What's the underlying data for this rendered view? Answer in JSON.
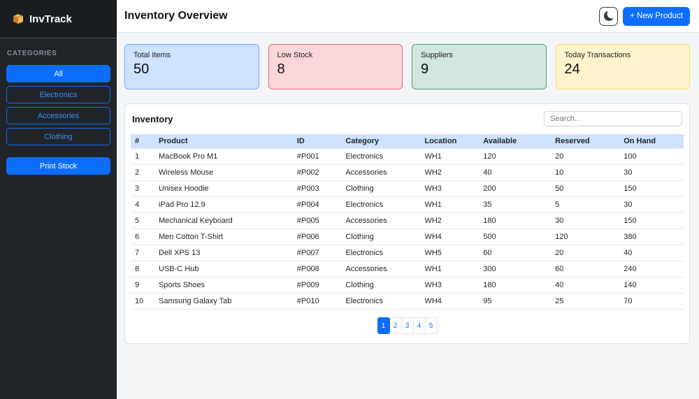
{
  "colors": {
    "accent": "#0d6efd",
    "sidebar_bg": "#212529",
    "sidebar_top_bg": "#1b1e21",
    "content_bg": "#f3f5f7",
    "table_header_bg": "#cfe2ff"
  },
  "sidebar": {
    "app_name": "InvTrack",
    "logo_icon": "package-icon",
    "section_label": "CATEGORIES",
    "categories": [
      {
        "label": "All",
        "active": true
      },
      {
        "label": "Electronics",
        "active": false
      },
      {
        "label": "Accessories",
        "active": false
      },
      {
        "label": "Clothing",
        "active": false
      }
    ],
    "print_button_label": "Print Stock"
  },
  "header": {
    "title": "Inventory Overview",
    "theme_toggle_icon": "moon-icon",
    "new_product_label": "+ New Product"
  },
  "stats": [
    {
      "label": "Total Items",
      "value": "50",
      "bg": "#cfe2ff",
      "border": "#6ea8fe"
    },
    {
      "label": "Low Stock",
      "value": "8",
      "bg": "#f8d7da",
      "border": "#dd6b75"
    },
    {
      "label": "Suppliers",
      "value": "9",
      "bg": "#d1e7dd",
      "border": "#479f76"
    },
    {
      "label": "Today Transactions",
      "value": "24",
      "bg": "#fff3cd",
      "border": "#ffda6a"
    }
  ],
  "inventory": {
    "title": "Inventory",
    "search_placeholder": "Search...",
    "columns": [
      "#",
      "Product",
      "ID",
      "Category",
      "Location",
      "Available",
      "Reserved",
      "On Hand"
    ],
    "rows": [
      [
        "1",
        "MacBook Pro M1",
        "#P001",
        "Electronics",
        "WH1",
        "120",
        "20",
        "100"
      ],
      [
        "2",
        "Wireless Mouse",
        "#P002",
        "Accessories",
        "WH2",
        "40",
        "10",
        "30"
      ],
      [
        "3",
        "Unisex Hoodie",
        "#P003",
        "Clothing",
        "WH3",
        "200",
        "50",
        "150"
      ],
      [
        "4",
        "iPad Pro 12.9",
        "#P004",
        "Electronics",
        "WH1",
        "35",
        "5",
        "30"
      ],
      [
        "5",
        "Mechanical Keyboard",
        "#P005",
        "Accessories",
        "WH2",
        "180",
        "30",
        "150"
      ],
      [
        "6",
        "Men Cotton T-Shirt",
        "#P006",
        "Clothing",
        "WH4",
        "500",
        "120",
        "380"
      ],
      [
        "7",
        "Dell XPS 13",
        "#P007",
        "Electronics",
        "WH5",
        "60",
        "20",
        "40"
      ],
      [
        "8",
        "USB-C Hub",
        "#P008",
        "Accessories",
        "WH1",
        "300",
        "60",
        "240"
      ],
      [
        "9",
        "Sports Shoes",
        "#P009",
        "Clothing",
        "WH3",
        "180",
        "40",
        "140"
      ],
      [
        "10",
        "Samsung Galaxy Tab",
        "#P010",
        "Electronics",
        "WH4",
        "95",
        "25",
        "70"
      ]
    ],
    "pagination": {
      "pages": [
        "1",
        "2",
        "3",
        "4",
        "5"
      ],
      "active": "1"
    }
  }
}
